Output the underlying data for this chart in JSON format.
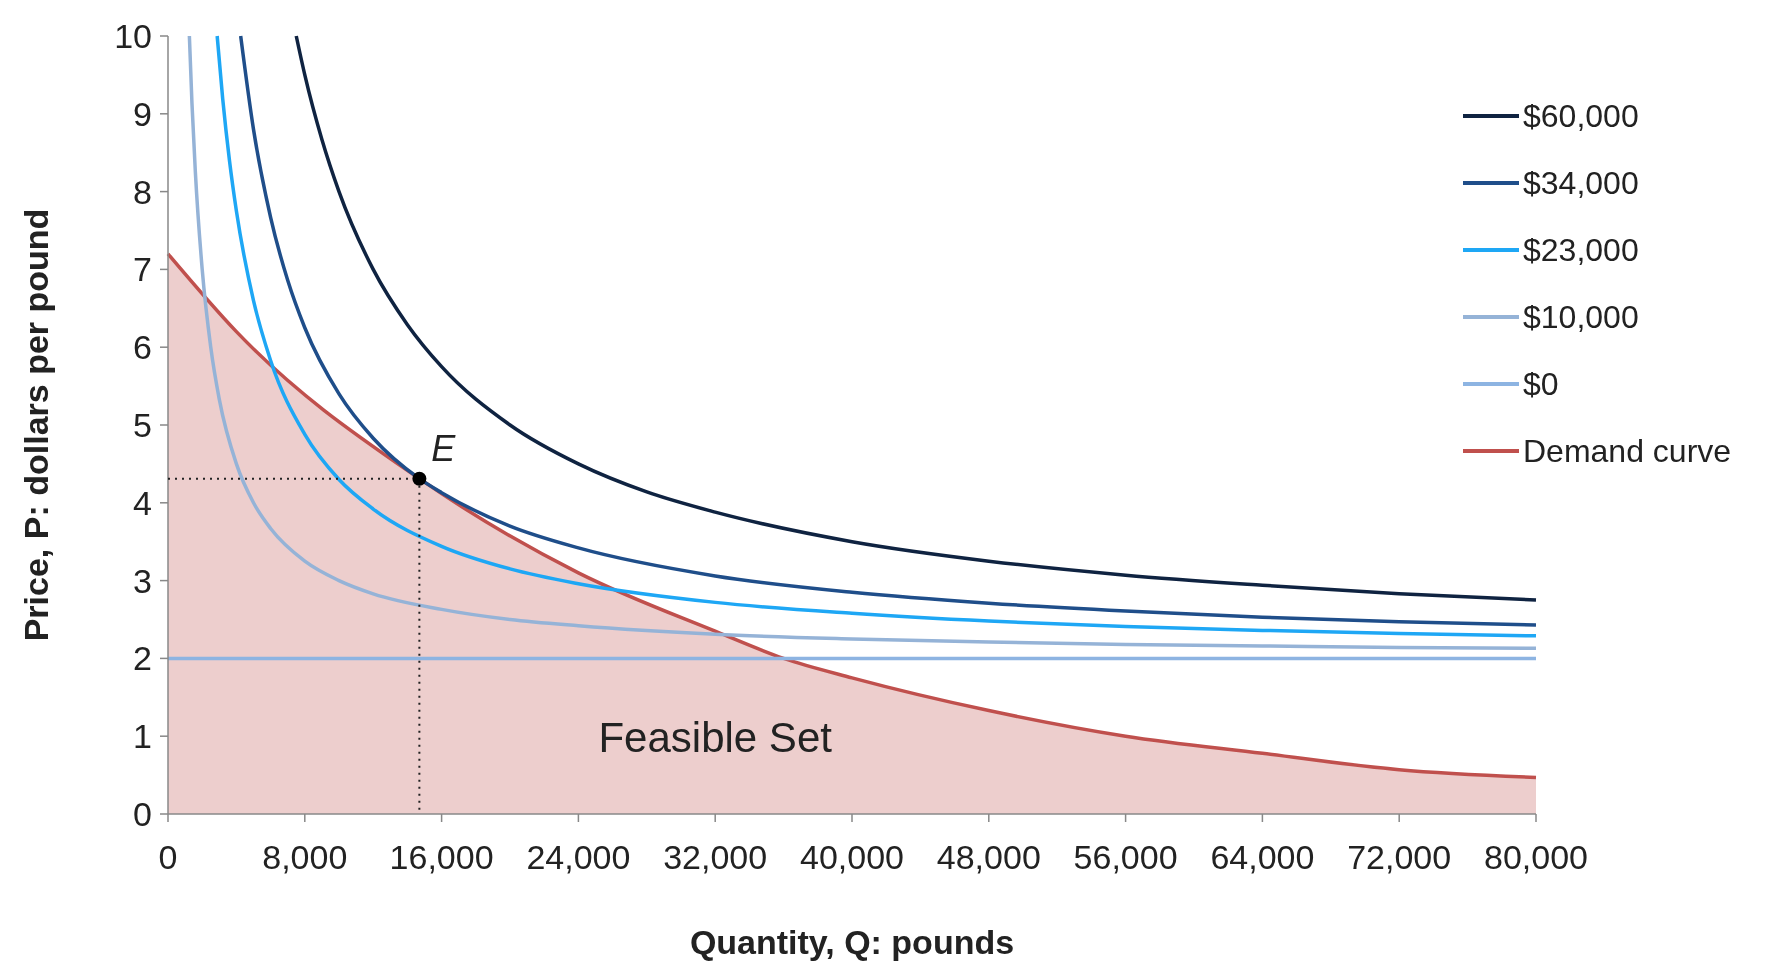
{
  "chart_data": {
    "type": "line",
    "xlabel": "Quantity, Q: pounds",
    "ylabel": "Price, P: dollars per pound",
    "xlim": [
      0,
      80000
    ],
    "ylim": [
      0,
      10
    ],
    "xticks": [
      0,
      {
        "value": 8000,
        "label": "8,000"
      },
      {
        "value": 16000,
        "label": "16,000"
      },
      {
        "value": 24000,
        "label": "24,000"
      },
      {
        "value": 32000,
        "label": "32,000"
      },
      {
        "value": 40000,
        "label": "40,000"
      },
      {
        "value": 48000,
        "label": "48,000"
      },
      {
        "value": 56000,
        "label": "56,000"
      },
      {
        "value": 64000,
        "label": "64,000"
      },
      {
        "value": 72000,
        "label": "72,000"
      },
      {
        "value": 80000,
        "label": "80,000"
      }
    ],
    "yticks": [
      0,
      1,
      2,
      3,
      4,
      5,
      6,
      7,
      8,
      9,
      10
    ],
    "grid": false,
    "legend": "top right",
    "marker": "none",
    "line_style": "solid",
    "series": [
      {
        "name": "$60,000",
        "color": "#0f2341",
        "x": [
          7500,
          8000,
          9000,
          10000,
          12000,
          14000,
          16000,
          20000,
          24000,
          28000,
          32000,
          40000,
          48000,
          56000,
          64000,
          72000,
          80000
        ],
        "values": [
          10,
          9.5,
          8.67,
          8,
          7,
          6.29,
          5.75,
          5,
          4.5,
          4.14,
          3.88,
          3.5,
          3.25,
          3.07,
          2.94,
          2.83,
          2.75
        ]
      },
      {
        "name": "$34,000",
        "color": "#1f4e8a",
        "x": [
          4250,
          5000,
          6000,
          7000,
          8000,
          10000,
          12000,
          14700,
          16000,
          20000,
          24000,
          32000,
          40000,
          48000,
          56000,
          64000,
          72000,
          80000
        ],
        "values": [
          10,
          8.8,
          7.67,
          6.86,
          6.25,
          5.4,
          4.83,
          4.31,
          4.13,
          3.7,
          3.42,
          3.06,
          2.85,
          2.71,
          2.61,
          2.53,
          2.47,
          2.43
        ]
      },
      {
        "name": "$23,000",
        "color": "#1ea7f5",
        "x": [
          2875,
          3200,
          3600,
          4000,
          5000,
          6000,
          8000,
          10000,
          12000,
          16000,
          20000,
          24000,
          32000,
          40000,
          48000,
          56000,
          64000,
          72000,
          80000
        ],
        "values": [
          10,
          9.19,
          8.39,
          7.75,
          6.6,
          5.83,
          4.88,
          4.3,
          3.92,
          3.44,
          3.15,
          2.96,
          2.72,
          2.58,
          2.48,
          2.41,
          2.36,
          2.32,
          2.29
        ]
      },
      {
        "name": "$10,000",
        "color": "#95b3d7",
        "x": [
          1250,
          1400,
          1600,
          2000,
          2500,
          3000,
          4000,
          5000,
          6000,
          8000,
          10000,
          12000,
          16000,
          20000,
          24000,
          32000,
          40000,
          48000,
          56000,
          64000,
          72000,
          80000
        ],
        "values": [
          10,
          9.14,
          8.25,
          7,
          6,
          5.33,
          4.5,
          4,
          3.67,
          3.25,
          3,
          2.83,
          2.63,
          2.5,
          2.42,
          2.31,
          2.25,
          2.21,
          2.18,
          2.16,
          2.14,
          2.13
        ]
      },
      {
        "name": "$0",
        "color": "#8db4e2",
        "x": [
          0,
          80000
        ],
        "values": [
          2,
          2
        ]
      },
      {
        "name": "Demand curve",
        "type": "area",
        "color": "#c0504d",
        "x": [
          0,
          4000,
          14700,
          24000,
          32000,
          36000,
          40000,
          48000,
          56000,
          64000,
          72000,
          80000
        ],
        "values": [
          7.2,
          6.2,
          4.31,
          3.1,
          2.35,
          2.0,
          1.75,
          1.33,
          1.0,
          0.78,
          0.57,
          0.47
        ]
      }
    ],
    "annotations": [
      {
        "text": "E",
        "x": 14700,
        "y": 4.31
      },
      "Feasible Set"
    ]
  }
}
